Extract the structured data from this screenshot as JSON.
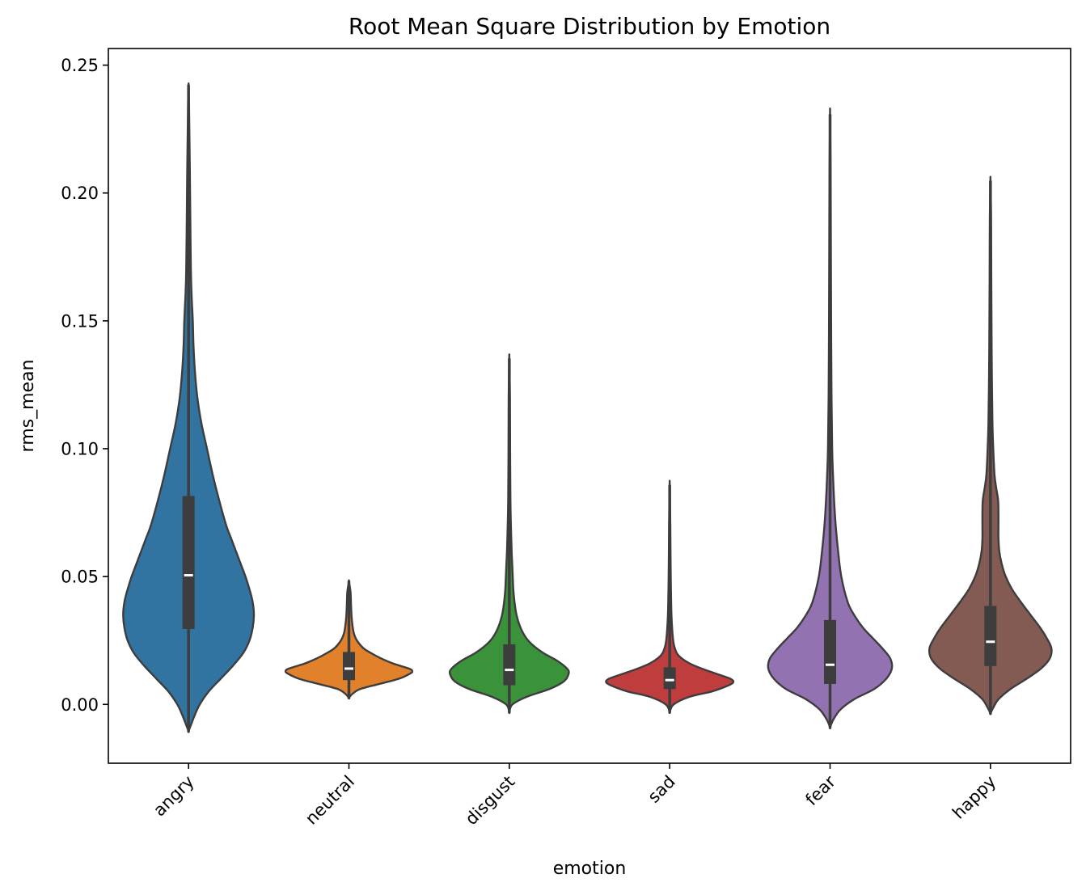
{
  "chart_data": {
    "type": "violin",
    "title": "Root Mean Square Distribution by Emotion",
    "xlabel": "emotion",
    "ylabel": "rms_mean",
    "ylim": [
      -0.023,
      0.2565
    ],
    "yticks": [
      0.0,
      0.05,
      0.1,
      0.15,
      0.2,
      0.25
    ],
    "ytick_labels": [
      "0.00",
      "0.05",
      "0.10",
      "0.15",
      "0.20",
      "0.25"
    ],
    "grid": false,
    "categories": [
      "angry",
      "neutral",
      "disgust",
      "sad",
      "fear",
      "happy"
    ],
    "series": [
      {
        "category": "angry",
        "color": "#3274a1",
        "kde_min": -0.0105,
        "kde_max": 0.242,
        "whisker_low": 0.0085,
        "q1": 0.0295,
        "median": 0.0505,
        "q3": 0.0815,
        "whisker_high": 0.151,
        "profile": [
          [
            -0.0105,
            0
          ],
          [
            -0.008,
            0.03
          ],
          [
            -0.004,
            0.08
          ],
          [
            0.0,
            0.14
          ],
          [
            0.005,
            0.25
          ],
          [
            0.01,
            0.4
          ],
          [
            0.015,
            0.55
          ],
          [
            0.02,
            0.68
          ],
          [
            0.025,
            0.76
          ],
          [
            0.03,
            0.8
          ],
          [
            0.035,
            0.815
          ],
          [
            0.04,
            0.8
          ],
          [
            0.045,
            0.76
          ],
          [
            0.05,
            0.71
          ],
          [
            0.055,
            0.65
          ],
          [
            0.06,
            0.59
          ],
          [
            0.065,
            0.53
          ],
          [
            0.07,
            0.47
          ],
          [
            0.08,
            0.38
          ],
          [
            0.09,
            0.3
          ],
          [
            0.1,
            0.23
          ],
          [
            0.11,
            0.16
          ],
          [
            0.12,
            0.11
          ],
          [
            0.13,
            0.08
          ],
          [
            0.14,
            0.062
          ],
          [
            0.15,
            0.053
          ],
          [
            0.16,
            0.038
          ],
          [
            0.17,
            0.029
          ],
          [
            0.19,
            0.022
          ],
          [
            0.21,
            0.016
          ],
          [
            0.225,
            0.01
          ],
          [
            0.235,
            0.006
          ],
          [
            0.242,
            0
          ]
        ]
      },
      {
        "category": "neutral",
        "color": "#e1812c",
        "kde_min": 0.0025,
        "kde_max": 0.048,
        "whisker_low": 0.0065,
        "q1": 0.0095,
        "median": 0.014,
        "q3": 0.0205,
        "whisker_high": 0.0285,
        "profile": [
          [
            0.0025,
            0
          ],
          [
            0.004,
            0.04
          ],
          [
            0.006,
            0.14
          ],
          [
            0.008,
            0.38
          ],
          [
            0.01,
            0.62
          ],
          [
            0.012,
            0.76
          ],
          [
            0.013,
            0.79
          ],
          [
            0.014,
            0.75
          ],
          [
            0.016,
            0.55
          ],
          [
            0.018,
            0.4
          ],
          [
            0.02,
            0.28
          ],
          [
            0.022,
            0.18
          ],
          [
            0.025,
            0.1
          ],
          [
            0.028,
            0.06
          ],
          [
            0.032,
            0.04
          ],
          [
            0.036,
            0.03
          ],
          [
            0.04,
            0.025
          ],
          [
            0.044,
            0.02
          ],
          [
            0.048,
            0
          ]
        ]
      },
      {
        "category": "disgust",
        "color": "#3a923a",
        "kde_min": -0.003,
        "kde_max": 0.135,
        "whisker_low": 0.0035,
        "q1": 0.0075,
        "median": 0.0135,
        "q3": 0.0235,
        "whisker_high": 0.0385,
        "profile": [
          [
            -0.003,
            0
          ],
          [
            0.0,
            0.04
          ],
          [
            0.003,
            0.22
          ],
          [
            0.006,
            0.5
          ],
          [
            0.009,
            0.68
          ],
          [
            0.012,
            0.74
          ],
          [
            0.014,
            0.72
          ],
          [
            0.017,
            0.6
          ],
          [
            0.02,
            0.43
          ],
          [
            0.023,
            0.3
          ],
          [
            0.026,
            0.21
          ],
          [
            0.03,
            0.14
          ],
          [
            0.035,
            0.09
          ],
          [
            0.04,
            0.065
          ],
          [
            0.045,
            0.05
          ],
          [
            0.05,
            0.043
          ],
          [
            0.055,
            0.036
          ],
          [
            0.06,
            0.029
          ],
          [
            0.07,
            0.02
          ],
          [
            0.08,
            0.014
          ],
          [
            0.1,
            0.01
          ],
          [
            0.12,
            0.008
          ],
          [
            0.135,
            0
          ]
        ]
      },
      {
        "category": "sad",
        "color": "#c03d3e",
        "kde_min": -0.003,
        "kde_max": 0.0855,
        "whisker_low": 0.003,
        "q1": 0.006,
        "median": 0.0095,
        "q3": 0.0145,
        "whisker_high": 0.0195,
        "profile": [
          [
            -0.003,
            0
          ],
          [
            0.0,
            0.05
          ],
          [
            0.003,
            0.25
          ],
          [
            0.005,
            0.52
          ],
          [
            0.007,
            0.7
          ],
          [
            0.0085,
            0.79
          ],
          [
            0.01,
            0.76
          ],
          [
            0.012,
            0.58
          ],
          [
            0.014,
            0.4
          ],
          [
            0.016,
            0.25
          ],
          [
            0.018,
            0.15
          ],
          [
            0.02,
            0.09
          ],
          [
            0.023,
            0.055
          ],
          [
            0.026,
            0.04
          ],
          [
            0.03,
            0.03
          ],
          [
            0.035,
            0.022
          ],
          [
            0.04,
            0.018
          ],
          [
            0.05,
            0.013
          ],
          [
            0.06,
            0.01
          ],
          [
            0.07,
            0.008
          ],
          [
            0.0855,
            0
          ]
        ]
      },
      {
        "category": "fear",
        "color": "#9372b2",
        "kde_min": -0.009,
        "kde_max": 0.2305,
        "whisker_low": 0.0035,
        "q1": 0.008,
        "median": 0.0155,
        "q3": 0.033,
        "whisker_high": 0.0625,
        "profile": [
          [
            -0.009,
            0
          ],
          [
            -0.006,
            0.04
          ],
          [
            -0.002,
            0.13
          ],
          [
            0.002,
            0.3
          ],
          [
            0.006,
            0.55
          ],
          [
            0.01,
            0.7
          ],
          [
            0.014,
            0.77
          ],
          [
            0.018,
            0.75
          ],
          [
            0.022,
            0.65
          ],
          [
            0.026,
            0.53
          ],
          [
            0.03,
            0.41
          ],
          [
            0.035,
            0.3
          ],
          [
            0.04,
            0.22
          ],
          [
            0.05,
            0.14
          ],
          [
            0.06,
            0.1
          ],
          [
            0.07,
            0.07
          ],
          [
            0.08,
            0.05
          ],
          [
            0.09,
            0.036
          ],
          [
            0.1,
            0.026
          ],
          [
            0.12,
            0.018
          ],
          [
            0.15,
            0.013
          ],
          [
            0.18,
            0.01
          ],
          [
            0.21,
            0.007
          ],
          [
            0.2305,
            0
          ]
        ]
      },
      {
        "category": "happy",
        "color": "#845b53",
        "kde_min": -0.0035,
        "kde_max": 0.2045,
        "whisker_low": 0.0055,
        "q1": 0.015,
        "median": 0.0245,
        "q3": 0.0385,
        "whisker_high": 0.066,
        "profile": [
          [
            -0.0035,
            0
          ],
          [
            -0.001,
            0.04
          ],
          [
            0.002,
            0.1
          ],
          [
            0.006,
            0.25
          ],
          [
            0.01,
            0.45
          ],
          [
            0.014,
            0.63
          ],
          [
            0.018,
            0.74
          ],
          [
            0.022,
            0.76
          ],
          [
            0.026,
            0.7
          ],
          [
            0.03,
            0.62
          ],
          [
            0.035,
            0.5
          ],
          [
            0.04,
            0.38
          ],
          [
            0.045,
            0.27
          ],
          [
            0.05,
            0.19
          ],
          [
            0.055,
            0.14
          ],
          [
            0.06,
            0.11
          ],
          [
            0.065,
            0.1
          ],
          [
            0.07,
            0.1
          ],
          [
            0.075,
            0.1
          ],
          [
            0.08,
            0.095
          ],
          [
            0.085,
            0.07
          ],
          [
            0.09,
            0.05
          ],
          [
            0.1,
            0.035
          ],
          [
            0.11,
            0.025
          ],
          [
            0.13,
            0.017
          ],
          [
            0.15,
            0.013
          ],
          [
            0.17,
            0.01
          ],
          [
            0.19,
            0.008
          ],
          [
            0.2045,
            0
          ]
        ]
      }
    ]
  }
}
